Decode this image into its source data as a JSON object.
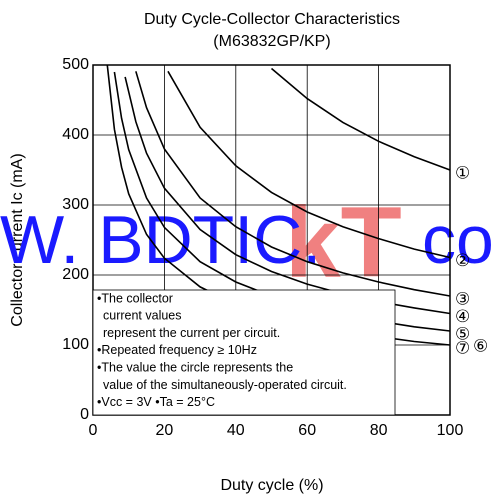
{
  "chart_data": {
    "type": "line",
    "title": "Duty Cycle-Collector Characteristics",
    "subtitle": "(M63832GP/KP)",
    "xlabel": "Duty cycle  (%)",
    "ylabel": "Collector current  Ic (mA)",
    "xlim": [
      0,
      100
    ],
    "xticks": [
      0,
      20,
      40,
      60,
      80,
      100
    ],
    "ylim": [
      0,
      500
    ],
    "yticks": [
      0,
      100,
      200,
      300,
      400,
      500
    ],
    "grid": true,
    "series": [
      {
        "name": "①",
        "color": "#000000",
        "x": [
          50,
          60,
          70,
          80,
          90,
          100
        ],
        "values": [
          495,
          452,
          418,
          391,
          369,
          350
        ]
      },
      {
        "name": "②",
        "color": "#000000",
        "x": [
          21,
          30,
          40,
          50,
          60,
          70,
          80,
          90,
          100
        ],
        "values": [
          491,
          411,
          356,
          318,
          290,
          269,
          252,
          237,
          225
        ]
      },
      {
        "name": "③",
        "color": "#000000",
        "x": [
          12,
          15,
          20,
          30,
          40,
          50,
          60,
          70,
          80,
          90,
          100
        ],
        "values": [
          491,
          439,
          380,
          310,
          269,
          240,
          219,
          203,
          190,
          179,
          170
        ]
      },
      {
        "name": "④",
        "color": "#000000",
        "x": [
          9,
          12,
          15,
          20,
          30,
          40,
          50,
          60,
          70,
          80,
          90,
          100
        ],
        "values": [
          483,
          419,
          374,
          324,
          265,
          229,
          205,
          187,
          173,
          162,
          153,
          145
        ]
      },
      {
        "name": "⑤",
        "color": "#000000",
        "x": [
          6,
          8,
          10,
          15,
          20,
          30,
          40,
          50,
          60,
          70,
          80,
          90,
          100
        ],
        "values": [
          490,
          424,
          379,
          310,
          268,
          219,
          190,
          170,
          155,
          143,
          134,
          126,
          120
        ]
      },
      {
        "name": "⑦",
        "color": "#000000",
        "x": [
          4,
          6,
          8,
          10,
          15,
          20,
          30,
          40,
          50,
          60,
          70,
          80,
          90,
          100
        ],
        "values": [
          500,
          408,
          354,
          316,
          258,
          224,
          183,
          158,
          141,
          129,
          120,
          112,
          105,
          100
        ]
      }
    ],
    "annotations": [
      "⑥"
    ],
    "notes": [
      "•The collector",
      "current values",
      "represent the current per circuit.",
      "•Repeated frequency  ≥ 10Hz",
      "•The value the circle represents the",
      "value of the simultaneously-operated circuit.",
      "•Vcc = 3V  •Ta = 25°C"
    ],
    "watermark": [
      {
        "text": "kT",
        "color": "#f08080"
      },
      {
        "text": "W. BDTIC.",
        "color": "#1a1aff"
      },
      {
        "text": "co",
        "color": "#1a1aff"
      }
    ]
  }
}
